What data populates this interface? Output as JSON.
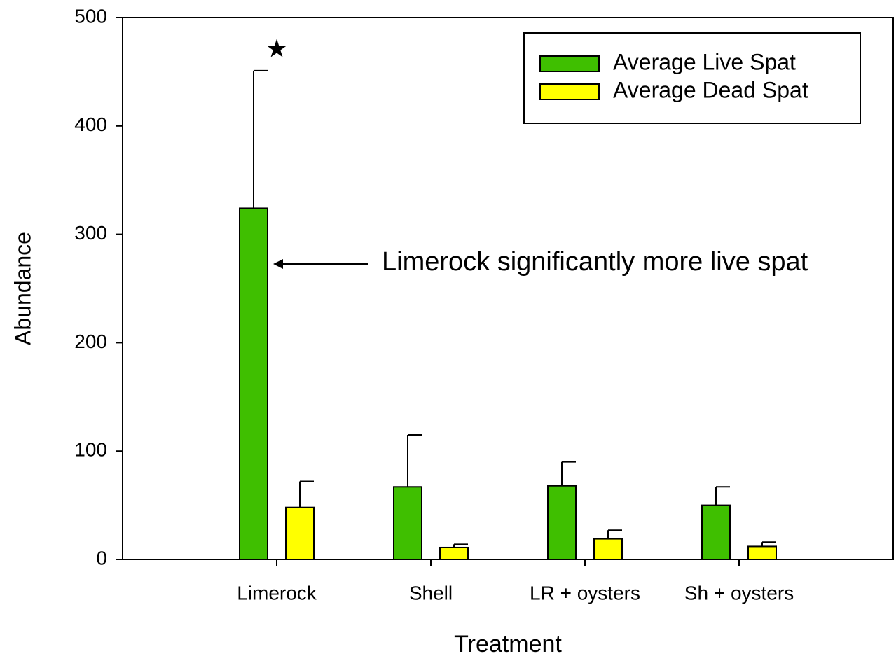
{
  "chart_data": {
    "type": "bar",
    "x_label": "Treatment",
    "y_label": "Abundance",
    "categories": [
      "Limerock",
      "Shell",
      "LR + oysters",
      "Sh + oysters"
    ],
    "series": [
      {
        "name": "Average Live Spat",
        "color": "#3fbf00",
        "values": [
          324,
          67,
          68,
          50
        ],
        "errors": [
          127,
          48,
          22,
          17
        ]
      },
      {
        "name": "Average Dead Spat",
        "color": "#ffff00",
        "values": [
          48,
          11,
          19,
          12
        ],
        "errors": [
          24,
          3,
          8,
          4
        ]
      }
    ],
    "ylim": [
      0,
      500
    ],
    "yticks": [
      0,
      100,
      200,
      300,
      400,
      500
    ],
    "legend": "upper right",
    "annotations": [
      "Limerock significantly more live spat",
      "★"
    ]
  }
}
